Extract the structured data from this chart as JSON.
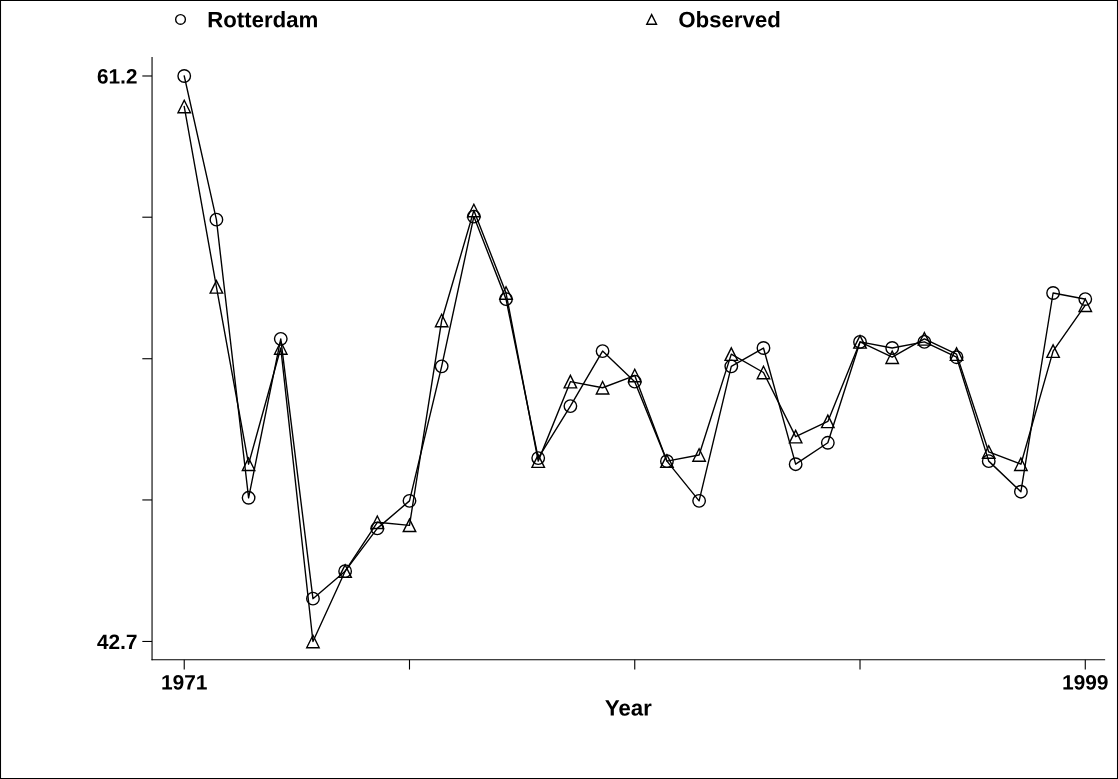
{
  "chart_data": {
    "type": "line",
    "xlabel": "Year",
    "x": [
      1971,
      1972,
      1973,
      1974,
      1975,
      1976,
      1977,
      1978,
      1979,
      1980,
      1981,
      1982,
      1983,
      1984,
      1985,
      1986,
      1987,
      1988,
      1989,
      1990,
      1991,
      1992,
      1993,
      1994,
      1995,
      1996,
      1997,
      1998,
      1999
    ],
    "series": [
      {
        "name": "Rotterdam",
        "color": "#000000",
        "marker": "circle",
        "values": [
          61.2,
          56.5,
          47.4,
          52.6,
          44.1,
          45.0,
          46.4,
          47.3,
          51.7,
          56.6,
          53.9,
          48.7,
          50.4,
          52.2,
          51.2,
          48.6,
          47.3,
          51.7,
          52.3,
          48.5,
          49.2,
          52.5,
          52.3,
          52.5,
          52.0,
          48.6,
          47.6,
          54.1,
          53.9
        ]
      },
      {
        "name": "Observed",
        "color": "#000000",
        "marker": "triangle",
        "values": [
          60.2,
          54.3,
          48.5,
          52.3,
          42.7,
          45.0,
          46.6,
          46.5,
          53.2,
          56.8,
          54.1,
          48.6,
          51.2,
          51.0,
          51.4,
          48.6,
          48.8,
          52.1,
          51.5,
          49.4,
          49.9,
          52.5,
          52.0,
          52.6,
          52.1,
          48.9,
          48.5,
          52.2,
          53.7
        ]
      }
    ],
    "xlim": [
      1970,
      1999.6
    ],
    "ylim": [
      42.1,
      61.8
    ],
    "xticks": [
      1971,
      {
        "value": 1978,
        "label": null
      },
      {
        "value": 1985,
        "label": null
      },
      {
        "value": 1992,
        "label": null
      },
      1999
    ],
    "yticks": [
      42.7,
      {
        "value": 47.33,
        "label": null
      },
      {
        "value": 51.95,
        "label": null
      },
      {
        "value": 56.58,
        "label": null
      },
      61.2
    ],
    "grid": false,
    "legend": "top",
    "line_style": "solid"
  }
}
